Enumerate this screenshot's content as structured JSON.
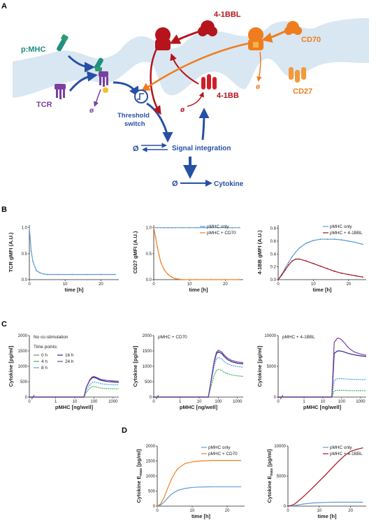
{
  "panels": {
    "A": "A",
    "B": "B",
    "C": "C",
    "D": "D"
  },
  "diagram": {
    "labels": {
      "pmhc": "p:MHC",
      "tcr": "TCR",
      "fourone_bbl": "4-1BBL",
      "cd70": "CD70",
      "cd27": "CD27",
      "fourone_bb": "4-1BB",
      "threshold": "Threshold",
      "switch": "switch",
      "signal_integration": "Signal integration",
      "cytokine": "Cytokine",
      "null_symbol": "ø",
      "null_symbol_big": "Ø"
    },
    "colors": {
      "membrane": "#d8e7f2",
      "blue": "#2650a6",
      "teal": "#1e8f80",
      "purple": "#7b3fa0",
      "darkred": "#b5141c",
      "orange": "#ef7d1f"
    }
  },
  "chart_data": [
    {
      "id": "B1",
      "type": "line",
      "xlabel": "time [h]",
      "ylabel": "TCR gMFI (A.U.)",
      "xlim": [
        0,
        25
      ],
      "ylim": [
        0,
        1.05
      ],
      "xticks": [
        0,
        10,
        20
      ],
      "yticks": [
        0.0,
        0.5,
        1.0
      ],
      "ytick_labels": [
        "0.0",
        "0.5",
        "1.0"
      ],
      "series": [
        {
          "color": "#5b9bd5",
          "markers": true,
          "x": [
            0,
            0.5,
            1,
            2,
            3,
            4,
            5,
            8,
            12,
            16,
            20,
            24
          ],
          "y": [
            1.0,
            0.55,
            0.35,
            0.17,
            0.13,
            0.11,
            0.1,
            0.1,
            0.1,
            0.1,
            0.1,
            0.1
          ]
        }
      ]
    },
    {
      "id": "B2",
      "type": "line",
      "xlabel": "time [h]",
      "ylabel": "CD27 gMFI (A.U.)",
      "xlim": [
        0,
        25
      ],
      "ylim": [
        0,
        1.05
      ],
      "xticks": [
        0,
        10,
        20
      ],
      "yticks": [
        0.0,
        0.5,
        1.0
      ],
      "ytick_labels": [
        "0.0",
        "0.5",
        "1.0"
      ],
      "legend": [
        "pMHC only",
        "pMHC + CD70"
      ],
      "series": [
        {
          "name": "pMHC only",
          "color": "#5b9bd5",
          "markers": true,
          "x": [
            0,
            1,
            2,
            3,
            4,
            5,
            6,
            8,
            10,
            12,
            14,
            16,
            18,
            20,
            22,
            24
          ],
          "y": [
            1,
            1,
            1,
            1,
            1,
            1,
            1,
            1,
            1,
            1,
            1,
            1,
            1,
            1,
            1,
            1
          ]
        },
        {
          "name": "pMHC + CD70",
          "color": "#ef7d1f",
          "markers": true,
          "x": [
            0,
            0.5,
            1,
            1.5,
            2,
            3,
            4,
            5,
            6,
            7,
            8,
            10,
            12,
            16,
            20,
            24
          ],
          "y": [
            1.0,
            0.82,
            0.62,
            0.46,
            0.33,
            0.18,
            0.1,
            0.05,
            0.02,
            0.01,
            0.0,
            0.0,
            0.0,
            0.0,
            0.0,
            0.0
          ]
        }
      ]
    },
    {
      "id": "B3",
      "type": "line",
      "xlabel": "time [h]",
      "ylabel": "4-1BB gMFI (A.U.)",
      "xlim": [
        0,
        25
      ],
      "ylim": [
        0,
        0.85
      ],
      "xticks": [
        0,
        10,
        20
      ],
      "yticks": [
        0.0,
        0.2,
        0.4,
        0.6,
        0.8
      ],
      "ytick_labels": [
        "0.0",
        "0.2",
        "0.4",
        "0.6",
        "0.8"
      ],
      "legend": [
        "pMHC only",
        "pMHC + 4-1BBL"
      ],
      "series": [
        {
          "name": "pMHC only",
          "color": "#5b9bd5",
          "markers": true,
          "x": [
            0,
            1,
            2,
            3,
            4,
            5,
            6,
            8,
            10,
            12,
            14,
            16,
            18,
            20,
            22,
            24
          ],
          "y": [
            0.0,
            0.08,
            0.18,
            0.27,
            0.36,
            0.43,
            0.49,
            0.57,
            0.61,
            0.63,
            0.63,
            0.63,
            0.62,
            0.6,
            0.58,
            0.55
          ]
        },
        {
          "name": "pMHC + 4-1BBL",
          "color": "#a0141c",
          "markers": true,
          "x": [
            0,
            1,
            2,
            3,
            4,
            5,
            6,
            8,
            10,
            12,
            14,
            16,
            18,
            20,
            22,
            24
          ],
          "y": [
            0.0,
            0.07,
            0.15,
            0.23,
            0.29,
            0.32,
            0.32,
            0.29,
            0.25,
            0.21,
            0.17,
            0.13,
            0.1,
            0.08,
            0.06,
            0.04
          ]
        }
      ]
    },
    {
      "id": "C1",
      "type": "line",
      "xscale": "log",
      "xlabel": "pMHC [ng/well]",
      "ylabel": "Cytokine [pg/ml]",
      "xticks": [
        0,
        1,
        10,
        100,
        1000
      ],
      "xtick_labels": [
        "0",
        "1",
        "10",
        "100",
        "1000"
      ],
      "ylim": [
        0,
        2000
      ],
      "yticks": [
        0,
        500,
        1000,
        1500,
        2000
      ],
      "ytick_labels": [
        "0",
        "500",
        "1000",
        "1500",
        "2000"
      ],
      "annotation": "No co-stimulation",
      "legend_title": "Time points:",
      "legend": [
        "0 h",
        "4 h",
        "8 h",
        "16 h",
        "24 h"
      ],
      "x": [
        0,
        0.1,
        0.3,
        1,
        3,
        10,
        20,
        30,
        40,
        60,
        80,
        100,
        150,
        200,
        300,
        500,
        1000,
        2000
      ],
      "series": [
        {
          "name": "0 h",
          "color": "#7f7f7f",
          "y": [
            0,
            0,
            0,
            0,
            0,
            0,
            0,
            0,
            0,
            0,
            0,
            0,
            0,
            0,
            0,
            0,
            0,
            0
          ]
        },
        {
          "name": "4 h",
          "color": "#3ab54a",
          "y": [
            0,
            0,
            0,
            0,
            0,
            0,
            0,
            0,
            160,
            280,
            330,
            340,
            320,
            300,
            285,
            275,
            270,
            265
          ]
        },
        {
          "name": "8 h",
          "color": "#4aa3d8",
          "y": [
            0,
            0,
            0,
            0,
            0,
            0,
            0,
            0,
            230,
            400,
            470,
            490,
            470,
            445,
            425,
            410,
            400,
            395
          ]
        },
        {
          "name": "16 h",
          "color": "#262690",
          "y": [
            0,
            0,
            0,
            0,
            0,
            0,
            0,
            0,
            310,
            540,
            620,
            640,
            600,
            560,
            530,
            505,
            490,
            480
          ]
        },
        {
          "name": "24 h",
          "color": "#7b3fa0",
          "y": [
            0,
            0,
            0,
            0,
            0,
            0,
            0,
            0,
            320,
            560,
            650,
            670,
            630,
            590,
            560,
            540,
            525,
            515
          ]
        }
      ]
    },
    {
      "id": "C2",
      "type": "line",
      "xscale": "log",
      "xlabel": "pMHC [ng/well]",
      "ylabel": "Cytokine [pg/ml]",
      "xticks": [
        0,
        1,
        10,
        100,
        1000
      ],
      "xtick_labels": [
        "0",
        "1",
        "10",
        "100",
        "1000"
      ],
      "ylim": [
        0,
        2000
      ],
      "yticks": [
        0,
        500,
        1000,
        1500,
        2000
      ],
      "ytick_labels": [
        "0",
        "500",
        "1000",
        "1500",
        "2000"
      ],
      "annotation": "pMHC + CD70",
      "x": [
        0,
        0.1,
        0.3,
        1,
        3,
        10,
        20,
        30,
        40,
        60,
        80,
        100,
        150,
        200,
        300,
        500,
        1000,
        2000
      ],
      "series": [
        {
          "name": "0 h",
          "color": "#7f7f7f",
          "y": [
            0,
            0,
            0,
            0,
            0,
            0,
            0,
            0,
            0,
            0,
            0,
            0,
            0,
            0,
            0,
            0,
            0,
            0
          ]
        },
        {
          "name": "4 h",
          "color": "#3ab54a",
          "y": [
            0,
            0,
            0,
            0,
            0,
            0,
            0,
            0,
            300,
            700,
            860,
            900,
            870,
            810,
            760,
            720,
            690,
            670
          ]
        },
        {
          "name": "8 h",
          "color": "#4aa3d8",
          "y": [
            0,
            0,
            0,
            0,
            0,
            0,
            0,
            0,
            420,
            1000,
            1240,
            1290,
            1240,
            1160,
            1080,
            1030,
            990,
            970
          ]
        },
        {
          "name": "16 h",
          "color": "#262690",
          "y": [
            0,
            0,
            0,
            0,
            0,
            0,
            0,
            0,
            460,
            1120,
            1410,
            1470,
            1420,
            1320,
            1220,
            1150,
            1100,
            1080
          ]
        },
        {
          "name": "24 h",
          "color": "#7b3fa0",
          "y": [
            0,
            0,
            0,
            0,
            0,
            0,
            0,
            0,
            480,
            1160,
            1460,
            1520,
            1470,
            1370,
            1270,
            1190,
            1140,
            1120
          ]
        }
      ]
    },
    {
      "id": "C3",
      "type": "line",
      "xscale": "log",
      "xlabel": "pMHC [ng/well]",
      "ylabel": "Cytokine [pg/ml]",
      "xticks": [
        0,
        1,
        10,
        100,
        1000
      ],
      "xtick_labels": [
        "0",
        "1",
        "10",
        "100",
        "1000"
      ],
      "ylim": [
        0,
        10000
      ],
      "yticks": [
        0,
        5000,
        10000
      ],
      "ytick_labels": [
        "0",
        "5000",
        "10000"
      ],
      "annotation": "pMHC + 4-1BBL",
      "x": [
        0,
        0.1,
        0.3,
        1,
        3,
        10,
        20,
        30,
        35,
        40,
        60,
        80,
        100,
        150,
        200,
        300,
        500,
        1000,
        2000
      ],
      "series": [
        {
          "name": "0 h",
          "color": "#7f7f7f",
          "y": [
            0,
            0,
            0,
            0,
            0,
            0,
            0,
            0,
            0,
            0,
            0,
            0,
            0,
            0,
            0,
            0,
            0,
            0,
            0
          ]
        },
        {
          "name": "4 h",
          "color": "#3ab54a",
          "y": [
            0,
            0,
            0,
            0,
            0,
            0,
            0,
            0,
            500,
            1000,
            1100,
            1100,
            1100,
            1080,
            1060,
            1050,
            1040,
            1030,
            1020
          ]
        },
        {
          "name": "8 h",
          "color": "#4aa3d8",
          "y": [
            0,
            0,
            0,
            0,
            0,
            0,
            0,
            0,
            1400,
            2700,
            3000,
            3000,
            3000,
            2950,
            2920,
            2900,
            2880,
            2860,
            2850
          ]
        },
        {
          "name": "16 h",
          "color": "#262690",
          "y": [
            0,
            0,
            0,
            0,
            0,
            0,
            0,
            0,
            3500,
            7100,
            7500,
            7500,
            7450,
            7300,
            7150,
            7000,
            6850,
            6700,
            6600
          ]
        },
        {
          "name": "24 h",
          "color": "#7b3fa0",
          "y": [
            0,
            0,
            0,
            0,
            0,
            0,
            0,
            0,
            4500,
            8900,
            9600,
            9500,
            9300,
            8700,
            8200,
            7700,
            7300,
            7000,
            6800
          ]
        }
      ]
    },
    {
      "id": "D1",
      "type": "line",
      "xlabel": "time [h]",
      "ylabel_main": "Cytokine E",
      "ylabel_sub": "max",
      "ylabel_unit": " [pg/ml]",
      "xlim": [
        0,
        25
      ],
      "ylim": [
        0,
        2000
      ],
      "xticks": [
        0,
        10,
        20
      ],
      "yticks": [
        0,
        500,
        1000,
        1500,
        2000
      ],
      "ytick_labels": [
        "0",
        "500",
        "1000",
        "1500",
        "2000"
      ],
      "legend": [
        "pMHC only",
        "pMHC + CD70"
      ],
      "series": [
        {
          "name": "pMHC only",
          "color": "#5b9bd5",
          "x": [
            0,
            1,
            2,
            3,
            4,
            5,
            6,
            8,
            10,
            12,
            14,
            16,
            18,
            20,
            22,
            24
          ],
          "y": [
            0,
            40,
            140,
            270,
            390,
            470,
            530,
            590,
            620,
            635,
            640,
            645,
            645,
            645,
            645,
            645
          ]
        },
        {
          "name": "pMHC + CD70",
          "color": "#ef7d1f",
          "x": [
            0,
            1,
            2,
            3,
            4,
            5,
            6,
            8,
            10,
            12,
            14,
            16,
            18,
            20,
            22,
            24
          ],
          "y": [
            0,
            80,
            300,
            600,
            880,
            1100,
            1260,
            1420,
            1470,
            1500,
            1510,
            1520,
            1520,
            1520,
            1520,
            1520
          ]
        }
      ]
    },
    {
      "id": "D2",
      "type": "line",
      "xlabel": "time [h]",
      "ylabel_main": "Cytokine E",
      "ylabel_sub": "max",
      "ylabel_unit": " [pg/ml]",
      "xlim": [
        0,
        25
      ],
      "ylim": [
        0,
        10000
      ],
      "xticks": [
        0,
        10,
        20
      ],
      "yticks": [
        0,
        5000,
        10000
      ],
      "ytick_labels": [
        "0",
        "5000",
        "10000"
      ],
      "legend": [
        "pMHC only",
        "pMHC + 4-1BBL"
      ],
      "series": [
        {
          "name": "pMHC only",
          "color": "#5b9bd5",
          "x": [
            0,
            1,
            2,
            3,
            4,
            5,
            6,
            8,
            10,
            12,
            14,
            16,
            18,
            20,
            22,
            24
          ],
          "y": [
            0,
            20,
            80,
            170,
            270,
            350,
            420,
            520,
            580,
            620,
            640,
            650,
            650,
            650,
            650,
            650
          ]
        },
        {
          "name": "pMHC + 4-1BBL",
          "color": "#a0141c",
          "x": [
            0,
            1,
            2,
            3,
            4,
            5,
            6,
            8,
            10,
            12,
            14,
            16,
            18,
            20,
            22,
            24
          ],
          "y": [
            0,
            100,
            300,
            700,
            1150,
            1600,
            2100,
            3100,
            4150,
            5200,
            6300,
            7400,
            8350,
            9100,
            9450,
            9700
          ]
        }
      ]
    }
  ]
}
